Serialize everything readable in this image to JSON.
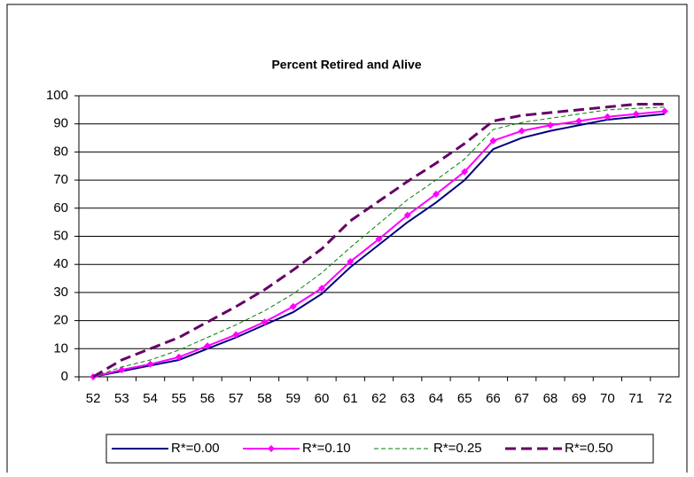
{
  "chart_data": {
    "type": "line",
    "title": "Percent Retired and Alive",
    "categories": [
      52,
      53,
      54,
      55,
      56,
      57,
      58,
      59,
      60,
      61,
      62,
      63,
      64,
      65,
      66,
      67,
      68,
      69,
      70,
      71,
      72
    ],
    "series": [
      {
        "name": "R*=0.00",
        "color": "#000080",
        "style": "solid",
        "width": 2,
        "values": [
          0,
          2,
          4,
          6,
          10,
          14,
          18.5,
          23,
          29.5,
          39,
          47,
          55,
          62,
          70,
          81,
          85,
          87.5,
          89.5,
          91.5,
          92.5,
          93.5
        ]
      },
      {
        "name": "R*=0.10",
        "color": "#ff00ff",
        "style": "solid",
        "width": 2,
        "marker": "diamond",
        "values": [
          0,
          2.5,
          4.5,
          7,
          11,
          15,
          19.5,
          25,
          31.5,
          41,
          49,
          57.5,
          65,
          73,
          84,
          87.5,
          89.5,
          91,
          92.5,
          93.5,
          94.5
        ]
      },
      {
        "name": "R*=0.25",
        "color": "#008000",
        "style": "dashed",
        "width": 1,
        "values": [
          0,
          3.5,
          6,
          9.5,
          14,
          18.5,
          23.5,
          29.5,
          37,
          46,
          54.5,
          63,
          70,
          77.5,
          88,
          90.5,
          92,
          93.5,
          95,
          95.5,
          96
        ]
      },
      {
        "name": "R*=0.50",
        "color": "#660066",
        "style": "dashed",
        "width": 3,
        "values": [
          0,
          6,
          10,
          14,
          19.5,
          25,
          31,
          38,
          45.5,
          55.5,
          62.5,
          69.5,
          76,
          83,
          91,
          93,
          94,
          95,
          96,
          97,
          97
        ]
      }
    ],
    "ylim": [
      0,
      100
    ],
    "yticks": [
      0,
      10,
      20,
      30,
      40,
      50,
      60,
      70,
      80,
      90,
      100
    ],
    "grid": true,
    "legend": "bottom"
  }
}
